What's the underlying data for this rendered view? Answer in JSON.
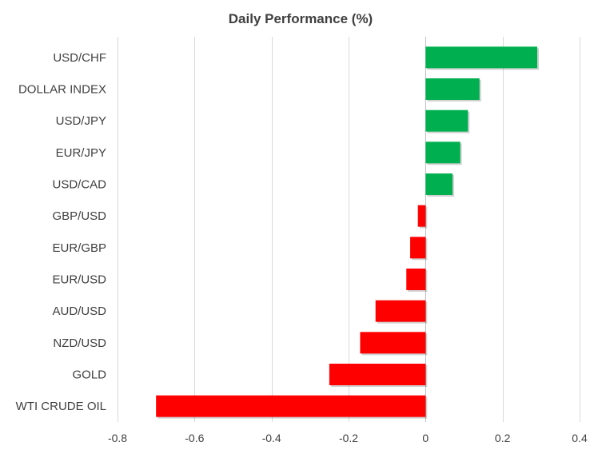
{
  "chart_data": {
    "type": "bar",
    "orientation": "horizontal",
    "title": "Daily Performance  (%)",
    "xlabel": "",
    "ylabel": "",
    "categories": [
      "USD/CHF",
      "DOLLAR INDEX",
      "USD/JPY",
      "EUR/JPY",
      "USD/CAD",
      "GBP/USD",
      "EUR/GBP",
      "EUR/USD",
      "AUD/USD",
      "NZD/USD",
      "GOLD",
      "WTI CRUDE OIL"
    ],
    "values": [
      0.29,
      0.14,
      0.11,
      0.09,
      0.07,
      -0.02,
      -0.04,
      -0.05,
      -0.13,
      -0.17,
      -0.25,
      -0.7
    ],
    "xlim": [
      -0.8,
      0.4
    ],
    "xticks": [
      -0.8,
      -0.6,
      -0.4,
      -0.2,
      0,
      0.2,
      0.4
    ],
    "xtick_labels": [
      "-0.8",
      "-0.6",
      "-0.4",
      "-0.2",
      "0",
      "0.2",
      "0.4"
    ],
    "grid": true,
    "legend": "none",
    "colors": {
      "positive": "#00b050",
      "negative": "#ff0000",
      "grid": "#d9d9d9",
      "text": "#404040"
    }
  }
}
